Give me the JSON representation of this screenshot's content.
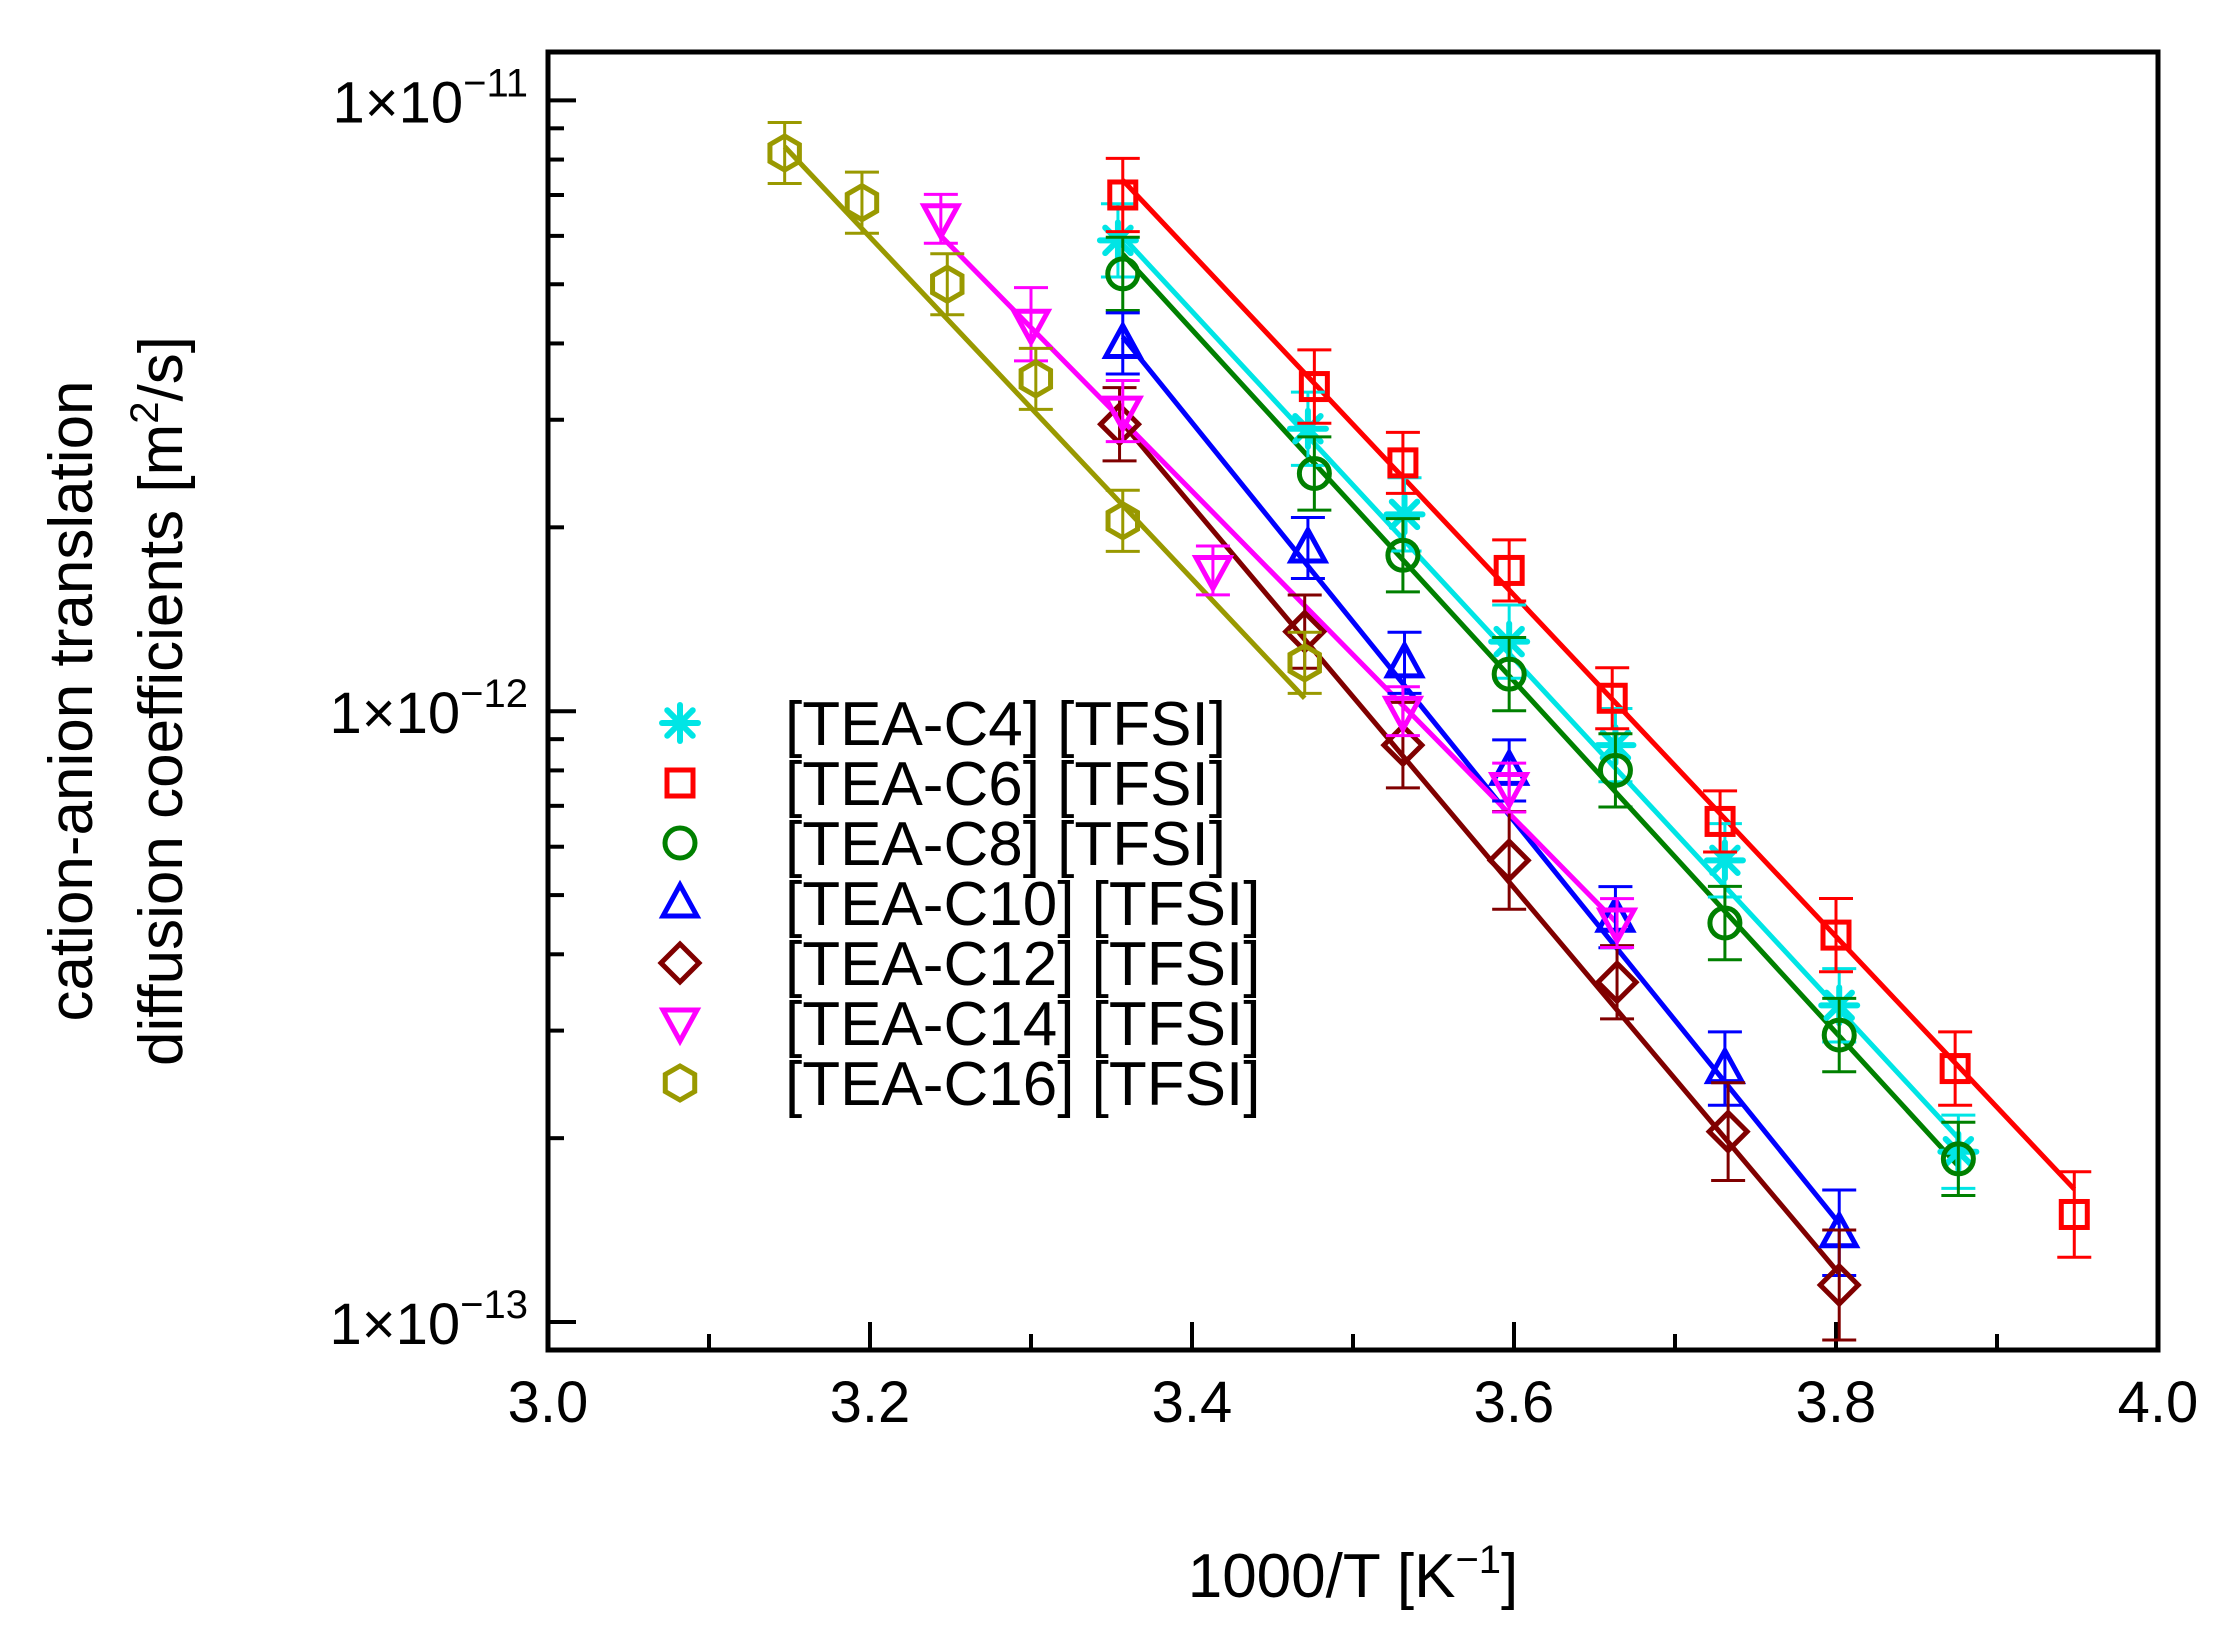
{
  "chart_data": {
    "type": "scatter",
    "title": "",
    "xlabel": "1000/T [K",
    "xlabel_sup": "−1",
    "xlabel_suffix": "]",
    "ylabel_line1": "cation-anion translation",
    "ylabel_line2": "diffusion coefficients [m",
    "ylabel_sup": "2",
    "ylabel_suffix": "/s]",
    "xlim": [
      3.0,
      4.0
    ],
    "ylim": [
      9e-14,
      1.2e-11
    ],
    "yscale": "log",
    "x_ticks": [
      3.0,
      3.2,
      3.4,
      3.6,
      3.8,
      4.0
    ],
    "x_tick_labels": [
      "3.0",
      "3.2",
      "3.4",
      "3.6",
      "3.8",
      "4.0"
    ],
    "y_ticks": [
      1e-11,
      1e-12,
      1e-13
    ],
    "y_tick_labels": [
      {
        "base": "1×10",
        "exp": "−11"
      },
      {
        "base": "1×10",
        "exp": "−12"
      },
      {
        "base": "1×10",
        "exp": "−13"
      }
    ],
    "legend_position": "lower-left",
    "series": [
      {
        "name": "[TEA-C4] [TFSI]",
        "marker": "asterisk",
        "color": "#00e5e5",
        "x": [
          3.354,
          3.472,
          3.532,
          3.597,
          3.663,
          3.731,
          3.802,
          3.876
        ],
        "y": [
          5.9e-12,
          2.9e-12,
          2.1e-12,
          1.3e-12,
          8.8e-13,
          5.7e-13,
          3.3e-13,
          1.9e-13
        ],
        "err": [
          0.06,
          0.06,
          0.06,
          0.06,
          0.06,
          0.06,
          0.06,
          0.06
        ],
        "fit": {
          "x": [
            3.354,
            3.876
          ],
          "y": [
            6.1e-12,
            2e-13
          ]
        }
      },
      {
        "name": "[TEA-C6] [TFSI]",
        "marker": "square",
        "color": "#ff0000",
        "x": [
          3.357,
          3.476,
          3.531,
          3.597,
          3.661,
          3.728,
          3.8,
          3.874,
          3.948
        ],
        "y": [
          7e-12,
          3.4e-12,
          2.55e-12,
          1.7e-12,
          1.05e-12,
          6.6e-13,
          4.3e-13,
          2.6e-13,
          1.5e-13
        ],
        "err": [
          0.06,
          0.06,
          0.05,
          0.05,
          0.05,
          0.05,
          0.06,
          0.06,
          0.07
        ],
        "fit": {
          "x": [
            3.357,
            3.948
          ],
          "y": [
            7.4e-12,
            1.65e-13
          ]
        }
      },
      {
        "name": "[TEA-C8] [TFSI]",
        "marker": "circle",
        "color": "#008000",
        "x": [
          3.357,
          3.476,
          3.531,
          3.597,
          3.663,
          3.731,
          3.802,
          3.876
        ],
        "y": [
          5.2e-12,
          2.45e-12,
          1.8e-12,
          1.15e-12,
          8e-13,
          4.5e-13,
          2.95e-13,
          1.85e-13
        ],
        "err": [
          0.06,
          0.06,
          0.06,
          0.06,
          0.06,
          0.06,
          0.06,
          0.06
        ],
        "fit": {
          "x": [
            3.357,
            3.876
          ],
          "y": [
            5.6e-12,
            1.8e-13
          ]
        }
      },
      {
        "name": "[TEA-C10] [TFSI]",
        "marker": "triangle-up",
        "color": "#0000ff",
        "x": [
          3.357,
          3.472,
          3.532,
          3.597,
          3.663,
          3.731,
          3.802
        ],
        "y": [
          4e-12,
          1.85e-12,
          1.2e-12,
          8e-13,
          4.6e-13,
          2.6e-13,
          1.4e-13
        ],
        "err": [
          0.05,
          0.05,
          0.05,
          0.05,
          0.05,
          0.06,
          0.07
        ],
        "fit": {
          "x": [
            3.357,
            3.802
          ],
          "y": [
            4.1e-12,
            1.45e-13
          ]
        }
      },
      {
        "name": "[TEA-C12] [TFSI]",
        "marker": "diamond",
        "color": "#800000",
        "x": [
          3.355,
          3.47,
          3.531,
          3.597,
          3.664,
          3.733,
          3.802
        ],
        "y": [
          2.95e-12,
          1.35e-12,
          8.8e-13,
          5.7e-13,
          3.6e-13,
          2.05e-13,
          1.15e-13
        ],
        "err": [
          0.06,
          0.06,
          0.07,
          0.08,
          0.06,
          0.08,
          0.09
        ],
        "fit": {
          "x": [
            3.355,
            3.802
          ],
          "y": [
            3e-12,
            1.2e-13
          ]
        }
      },
      {
        "name": "[TEA-C14] [TFSI]",
        "marker": "triangle-down",
        "color": "#ff00ff",
        "x": [
          3.244,
          3.3,
          3.357,
          3.413,
          3.531,
          3.597,
          3.664
        ],
        "y": [
          6.4e-12,
          4.3e-12,
          3.1e-12,
          1.7e-12,
          1e-12,
          7.5e-13,
          4.5e-13
        ],
        "err": [
          0.04,
          0.06,
          0.05,
          0.04,
          0.04,
          0.04,
          0.04
        ],
        "fit": {
          "x": [
            3.244,
            3.664
          ],
          "y": [
            6e-12,
            4.5e-13
          ]
        }
      },
      {
        "name": "[TEA-C16] [TFSI]",
        "marker": "hexagon",
        "color": "#999900",
        "x": [
          3.147,
          3.195,
          3.248,
          3.303,
          3.357,
          3.47
        ],
        "y": [
          8.2e-12,
          6.8e-12,
          5e-12,
          3.5e-12,
          2.05e-12,
          1.2e-12
        ],
        "err": [
          0.05,
          0.05,
          0.05,
          0.05,
          0.05,
          0.05
        ],
        "fit": {
          "x": [
            3.147,
            3.47
          ],
          "y": [
            8.4e-12,
            1.05e-12
          ]
        }
      }
    ]
  }
}
